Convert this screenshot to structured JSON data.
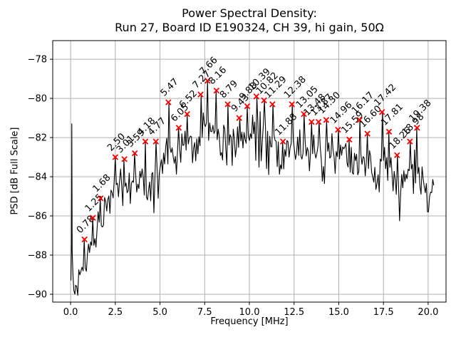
{
  "chart_data": {
    "type": "line",
    "title": "Power Spectral Density: Run 27, Board ID E190324, CH 39, hi gain, 50Ω",
    "title_line1": "Power Spectral Density:",
    "title_line2": "Run 27, Board ID E190324, CH 39, hi gain, 50Ω",
    "xlabel": "Frequency [MHz]",
    "ylabel": "PSD [dB Full Scale]",
    "xlim": [
      -1.0,
      21.0
    ],
    "ylim": [
      -90.4,
      -77.05
    ],
    "grid": true,
    "legend": "none",
    "xtick_values": [
      0,
      2.5,
      5,
      7.5,
      10,
      12.5,
      15,
      17.5,
      20
    ],
    "xtick_labels": [
      "0.0",
      "2.5",
      "5.0",
      "7.5",
      "10.0",
      "12.5",
      "15.0",
      "17.5",
      "20.0"
    ],
    "ytick_values": [
      -78,
      -80,
      -82,
      -84,
      -86,
      -88,
      -90
    ],
    "ytick_labels": [
      "−78",
      "−80",
      "−82",
      "−84",
      "−86",
      "−88",
      "−90"
    ],
    "colors": {
      "line": "#000000",
      "marker": "#ff0000",
      "grid": "#b0b0b0",
      "frame": "#000000",
      "text": "#000000"
    },
    "peaks": [
      {
        "f": 0.78,
        "psd": -87.2,
        "label": "0.78"
      },
      {
        "f": 1.25,
        "psd": -86.1,
        "label": "1.25"
      },
      {
        "f": 1.68,
        "psd": -85.1,
        "label": "1.68"
      },
      {
        "f": 2.5,
        "psd": -83.0,
        "label": "2.50"
      },
      {
        "f": 3.01,
        "psd": -83.1,
        "label": "3.01"
      },
      {
        "f": 3.59,
        "psd": -82.8,
        "label": "3.59"
      },
      {
        "f": 4.18,
        "psd": -82.2,
        "label": "4.18"
      },
      {
        "f": 4.77,
        "psd": -82.2,
        "label": "4.77"
      },
      {
        "f": 5.47,
        "psd": -80.2,
        "label": "5.47"
      },
      {
        "f": 6.05,
        "psd": -81.5,
        "label": "6.05"
      },
      {
        "f": 6.52,
        "psd": -80.8,
        "label": "6.52"
      },
      {
        "f": 7.27,
        "psd": -79.8,
        "label": "7.27"
      },
      {
        "f": 7.66,
        "psd": -79.1,
        "label": "7.66"
      },
      {
        "f": 8.16,
        "psd": -79.6,
        "label": "8.16"
      },
      {
        "f": 8.79,
        "psd": -80.3,
        "label": "8.79"
      },
      {
        "f": 9.43,
        "psd": -81.0,
        "label": "9.43"
      },
      {
        "f": 9.88,
        "psd": -80.4,
        "label": "9.88"
      },
      {
        "f": 10.39,
        "psd": -79.9,
        "label": "10.39"
      },
      {
        "f": 10.82,
        "psd": -80.1,
        "label": "10.82"
      },
      {
        "f": 11.29,
        "psd": -80.3,
        "label": "11.29"
      },
      {
        "f": 11.88,
        "psd": -82.2,
        "label": "11.88"
      },
      {
        "f": 12.38,
        "psd": -80.3,
        "label": "12.38"
      },
      {
        "f": 13.05,
        "psd": -80.8,
        "label": "13.05"
      },
      {
        "f": 13.48,
        "psd": -81.2,
        "label": "13.48"
      },
      {
        "f": 13.87,
        "psd": -81.2,
        "label": "13.87"
      },
      {
        "f": 14.3,
        "psd": -81.1,
        "label": "14.30"
      },
      {
        "f": 14.96,
        "psd": -81.6,
        "label": "14.96"
      },
      {
        "f": 15.59,
        "psd": -82.1,
        "label": "15.59"
      },
      {
        "f": 16.17,
        "psd": -81.1,
        "label": "16.17"
      },
      {
        "f": 16.6,
        "psd": -81.8,
        "label": "16.60"
      },
      {
        "f": 17.42,
        "psd": -80.7,
        "label": "17.42"
      },
      {
        "f": 17.81,
        "psd": -81.7,
        "label": "17.81"
      },
      {
        "f": 18.26,
        "psd": -82.9,
        "label": "18.26"
      },
      {
        "f": 18.98,
        "psd": -82.2,
        "label": "18.98"
      },
      {
        "f": 19.38,
        "psd": -81.5,
        "label": "19.38"
      }
    ],
    "lead_in_points": [
      [
        0.02,
        -89.3
      ],
      [
        0.05,
        -87.5
      ],
      [
        0.07,
        -81.3
      ],
      [
        0.09,
        -87.8
      ],
      [
        0.13,
        -89.0
      ],
      [
        0.18,
        -89.8
      ],
      [
        0.24,
        -90.0
      ]
    ],
    "envelope": [
      [
        0.28,
        -89.7
      ],
      [
        0.6,
        -89.0
      ],
      [
        0.9,
        -87.9
      ],
      [
        1.3,
        -86.9
      ],
      [
        1.7,
        -86.2
      ],
      [
        2.1,
        -85.2
      ],
      [
        2.5,
        -84.5
      ],
      [
        3.0,
        -84.4
      ],
      [
        3.6,
        -84.3
      ],
      [
        4.0,
        -84.0
      ],
      [
        4.4,
        -84.8
      ],
      [
        4.8,
        -83.7
      ],
      [
        5.2,
        -83.4
      ],
      [
        5.5,
        -82.3
      ],
      [
        5.9,
        -82.9
      ],
      [
        6.5,
        -82.3
      ],
      [
        7.0,
        -82.4
      ],
      [
        7.5,
        -81.5
      ],
      [
        8.0,
        -81.4
      ],
      [
        8.5,
        -82.0
      ],
      [
        9.0,
        -82.5
      ],
      [
        9.5,
        -82.4
      ],
      [
        10.0,
        -81.8
      ],
      [
        10.5,
        -81.6
      ],
      [
        11.0,
        -81.9
      ],
      [
        11.6,
        -82.8
      ],
      [
        12.0,
        -82.6
      ],
      [
        12.4,
        -81.9
      ],
      [
        13.0,
        -82.2
      ],
      [
        13.5,
        -82.6
      ],
      [
        14.0,
        -82.6
      ],
      [
        14.6,
        -82.7
      ],
      [
        15.2,
        -83.1
      ],
      [
        15.8,
        -83.3
      ],
      [
        16.2,
        -82.7
      ],
      [
        16.7,
        -83.3
      ],
      [
        17.1,
        -83.7
      ],
      [
        17.5,
        -82.8
      ],
      [
        17.9,
        -83.3
      ],
      [
        18.4,
        -84.7
      ],
      [
        18.8,
        -84.2
      ],
      [
        19.2,
        -83.5
      ],
      [
        19.5,
        -83.9
      ],
      [
        19.9,
        -84.9
      ],
      [
        20.36,
        -84.8
      ]
    ],
    "noise": {
      "seed": 7,
      "amplitude": 1.1,
      "dip_prob": 0.13,
      "dip_depth": 1.8
    },
    "f_range": [
      0.28,
      20.36
    ],
    "sample_step": 0.06,
    "value_floor": -90.05,
    "value_ceiling": -79.6
  }
}
